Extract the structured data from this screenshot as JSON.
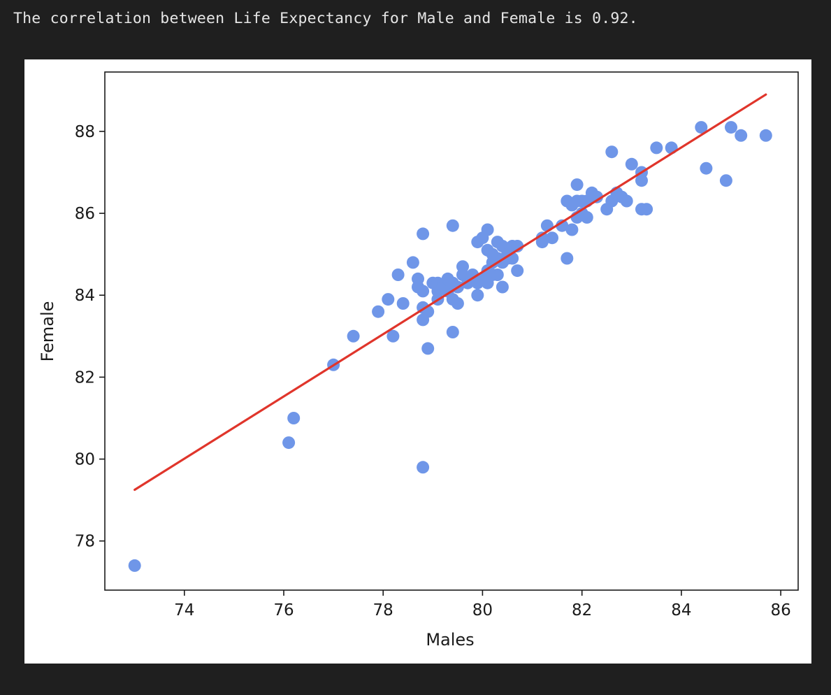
{
  "output": {
    "text": "The correlation between Life Expectancy for Male and Female is 0.92."
  },
  "colors": {
    "background": "#1f1f1f",
    "figure_background": "#ffffff",
    "points": "#6f96e8",
    "fit_line": "#e0352b",
    "text": "#e6e6e6"
  },
  "chart_data": {
    "type": "scatter",
    "title": "",
    "xlabel": "Males",
    "ylabel": "Female",
    "xlim": [
      72.4,
      86.35
    ],
    "ylim": [
      76.8,
      89.45
    ],
    "xticks": [
      74,
      76,
      78,
      80,
      82,
      84,
      86
    ],
    "yticks": [
      78,
      80,
      82,
      84,
      86,
      88
    ],
    "grid": false,
    "legend": "none",
    "points": [
      [
        73.0,
        77.4
      ],
      [
        76.1,
        80.4
      ],
      [
        76.2,
        81.0
      ],
      [
        77.0,
        82.3
      ],
      [
        77.4,
        83.0
      ],
      [
        77.9,
        83.6
      ],
      [
        78.1,
        83.9
      ],
      [
        78.2,
        83.0
      ],
      [
        78.3,
        84.5
      ],
      [
        78.4,
        83.8
      ],
      [
        78.6,
        84.8
      ],
      [
        78.7,
        84.4
      ],
      [
        78.7,
        84.2
      ],
      [
        78.8,
        85.5
      ],
      [
        78.8,
        84.1
      ],
      [
        78.8,
        83.7
      ],
      [
        78.8,
        83.4
      ],
      [
        78.8,
        79.8
      ],
      [
        78.9,
        82.7
      ],
      [
        78.9,
        83.6
      ],
      [
        79.0,
        84.3
      ],
      [
        79.1,
        84.3
      ],
      [
        79.1,
        83.9
      ],
      [
        79.1,
        84.1
      ],
      [
        79.2,
        84.2
      ],
      [
        79.3,
        84.4
      ],
      [
        79.3,
        84.1
      ],
      [
        79.4,
        85.7
      ],
      [
        79.4,
        84.3
      ],
      [
        79.4,
        83.9
      ],
      [
        79.4,
        83.1
      ],
      [
        79.5,
        83.8
      ],
      [
        79.5,
        84.2
      ],
      [
        79.6,
        84.7
      ],
      [
        79.6,
        84.5
      ],
      [
        79.7,
        84.3
      ],
      [
        79.8,
        84.5
      ],
      [
        79.9,
        85.3
      ],
      [
        79.9,
        84.3
      ],
      [
        79.9,
        84.0
      ],
      [
        80.0,
        85.4
      ],
      [
        80.0,
        84.4
      ],
      [
        80.1,
        85.6
      ],
      [
        80.1,
        85.1
      ],
      [
        80.1,
        84.6
      ],
      [
        80.1,
        84.3
      ],
      [
        80.2,
        85.0
      ],
      [
        80.2,
        84.8
      ],
      [
        80.2,
        84.5
      ],
      [
        80.3,
        85.3
      ],
      [
        80.3,
        84.9
      ],
      [
        80.3,
        84.5
      ],
      [
        80.4,
        85.2
      ],
      [
        80.4,
        84.8
      ],
      [
        80.4,
        84.2
      ],
      [
        80.5,
        85.0
      ],
      [
        80.5,
        84.9
      ],
      [
        80.6,
        85.2
      ],
      [
        80.6,
        84.9
      ],
      [
        80.7,
        85.2
      ],
      [
        80.7,
        84.6
      ],
      [
        81.2,
        85.3
      ],
      [
        81.2,
        85.4
      ],
      [
        81.3,
        85.7
      ],
      [
        81.4,
        85.4
      ],
      [
        81.6,
        85.7
      ],
      [
        81.7,
        86.3
      ],
      [
        81.7,
        84.9
      ],
      [
        81.8,
        85.6
      ],
      [
        81.8,
        86.2
      ],
      [
        81.9,
        86.7
      ],
      [
        81.9,
        86.3
      ],
      [
        81.9,
        85.9
      ],
      [
        82.0,
        86.3
      ],
      [
        82.0,
        86.0
      ],
      [
        82.1,
        86.3
      ],
      [
        82.1,
        85.9
      ],
      [
        82.2,
        86.5
      ],
      [
        82.3,
        86.4
      ],
      [
        82.5,
        86.1
      ],
      [
        82.6,
        87.5
      ],
      [
        82.6,
        86.3
      ],
      [
        82.7,
        86.5
      ],
      [
        82.8,
        86.4
      ],
      [
        82.9,
        86.3
      ],
      [
        83.0,
        87.2
      ],
      [
        83.2,
        87.0
      ],
      [
        83.2,
        86.8
      ],
      [
        83.2,
        86.1
      ],
      [
        83.3,
        86.1
      ],
      [
        83.5,
        87.6
      ],
      [
        83.8,
        87.6
      ],
      [
        84.4,
        88.1
      ],
      [
        84.5,
        87.1
      ],
      [
        84.9,
        86.8
      ],
      [
        85.0,
        88.1
      ],
      [
        85.2,
        87.9
      ],
      [
        85.7,
        87.9
      ]
    ],
    "fit_line": [
      [
        73.0,
        79.25
      ],
      [
        85.7,
        88.9
      ]
    ]
  }
}
